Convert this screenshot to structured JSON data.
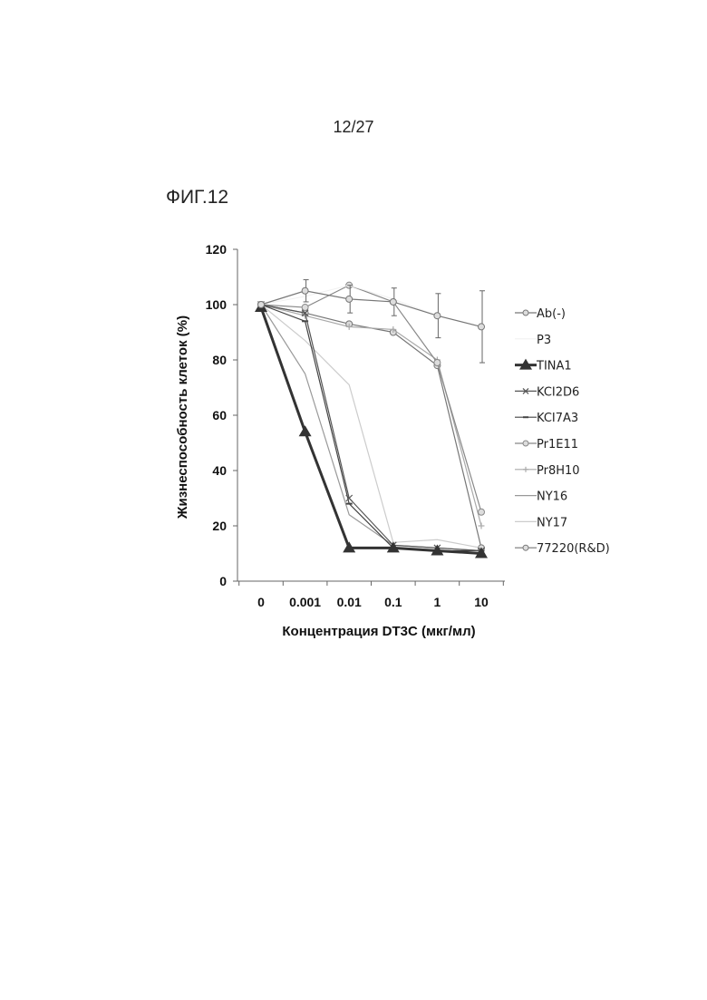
{
  "page": {
    "number": "12/27",
    "figure_label": "ФИГ.12"
  },
  "chart_data": {
    "type": "line",
    "title": "",
    "xlabel": "Концентрация DT3C (мкг/мл)",
    "ylabel": "Жизнеспособность клеток (%)",
    "categories": [
      "0",
      "0.001",
      "0.01",
      "0.1",
      "1",
      "10"
    ],
    "y_ticks": [
      "0",
      "20",
      "40",
      "60",
      "80",
      "100",
      "120"
    ],
    "ylim": [
      0,
      120
    ],
    "legend_position": "right",
    "series": [
      {
        "name": "Ab(-)",
        "color": "#777777",
        "marker": "circle",
        "width": 1.2,
        "values": [
          100,
          105,
          102,
          101,
          96,
          92
        ],
        "err": [
          0,
          4,
          5,
          5,
          8,
          13
        ]
      },
      {
        "name": "P3",
        "color": "#f0f0f0",
        "marker": "none",
        "width": 1.0,
        "values": [
          100,
          103,
          107,
          102,
          96,
          92
        ]
      },
      {
        "name": "TINA1",
        "color": "#333333",
        "marker": "triangle",
        "width": 3.0,
        "values": [
          99,
          54,
          12,
          12,
          11,
          10
        ]
      },
      {
        "name": "KCI2D6",
        "color": "#555555",
        "marker": "x",
        "width": 1.2,
        "values": [
          100,
          97,
          30,
          13,
          12,
          11
        ]
      },
      {
        "name": "KCI7A3",
        "color": "#444444",
        "marker": "dash",
        "width": 1.2,
        "values": [
          100,
          94,
          28,
          12,
          11,
          11
        ]
      },
      {
        "name": "Pr1E11",
        "color": "#888888",
        "marker": "circle",
        "width": 1.2,
        "values": [
          100,
          99,
          107,
          101,
          79,
          25
        ]
      },
      {
        "name": "Pr8H10",
        "color": "#aaaaaa",
        "marker": "plus",
        "width": 1.2,
        "values": [
          100,
          96,
          92,
          91,
          80,
          20
        ]
      },
      {
        "name": "NY16",
        "color": "#999999",
        "marker": "none",
        "width": 1.2,
        "values": [
          100,
          75,
          24,
          13,
          12,
          11
        ]
      },
      {
        "name": "NY17",
        "color": "#cccccc",
        "marker": "none",
        "width": 1.2,
        "values": [
          100,
          87,
          71,
          14,
          15,
          12
        ]
      },
      {
        "name": "77220(R&D)",
        "color": "#777777",
        "marker": "circle",
        "width": 1.2,
        "values": [
          100,
          97,
          93,
          90,
          78,
          12
        ]
      }
    ]
  }
}
